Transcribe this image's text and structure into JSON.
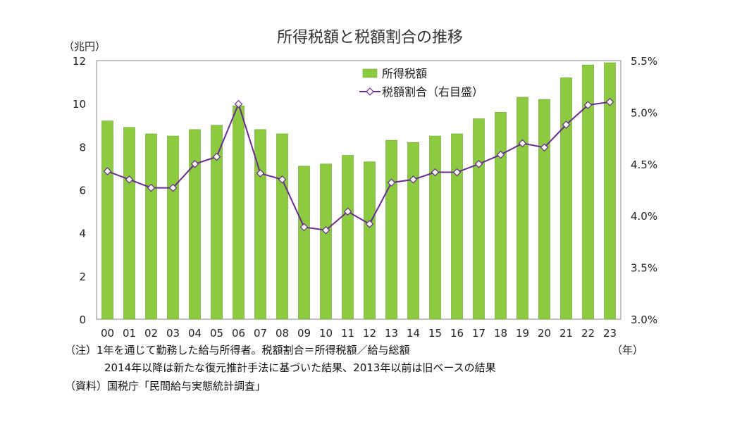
{
  "chart_data": {
    "type": "bar",
    "title": "所得税額と税額割合の推移",
    "y_unit_label": "（兆円）",
    "x_unit_label": "（年）",
    "categories": [
      "00",
      "01",
      "02",
      "03",
      "04",
      "05",
      "06",
      "07",
      "08",
      "09",
      "10",
      "11",
      "12",
      "13",
      "14",
      "15",
      "16",
      "17",
      "18",
      "19",
      "20",
      "21",
      "22",
      "23"
    ],
    "series": [
      {
        "name": "所得税額",
        "type": "bar",
        "axis": "left",
        "color": "#8ccb3f",
        "values": [
          9.2,
          8.9,
          8.6,
          8.5,
          8.8,
          9.0,
          9.9,
          8.8,
          8.6,
          7.1,
          7.2,
          7.6,
          7.3,
          8.3,
          8.2,
          8.5,
          8.6,
          9.3,
          9.6,
          10.3,
          10.2,
          11.2,
          11.8,
          11.9
        ]
      },
      {
        "name": "税額割合（右目盛）",
        "type": "line",
        "axis": "right",
        "color": "#6a2d8f",
        "values": [
          4.43,
          4.35,
          4.27,
          4.27,
          4.5,
          4.57,
          5.08,
          4.41,
          4.35,
          3.89,
          3.86,
          4.04,
          3.92,
          4.32,
          4.35,
          4.42,
          4.42,
          4.5,
          4.59,
          4.7,
          4.66,
          4.88,
          5.07,
          5.1
        ]
      }
    ],
    "y_left": {
      "range": [
        0,
        12
      ],
      "ticks": [
        "0",
        "2",
        "4",
        "6",
        "8",
        "10",
        "12"
      ]
    },
    "y_right": {
      "range": [
        3.0,
        5.5
      ],
      "ticks": [
        "3.0%",
        "3.5%",
        "4.0%",
        "4.5%",
        "5.0%",
        "5.5%"
      ]
    },
    "grid": false,
    "legend_position": "top-center"
  },
  "notes": {
    "line1": "（注）1年を通じて勤務した給与所得者。税額割合＝所得税額／給与総額",
    "line2": "2014年以降は新たな復元推計手法に基づいた結果、2013年以前は旧ベースの結果",
    "source": "（資料）国税庁「民間給与実態統計調査」"
  }
}
